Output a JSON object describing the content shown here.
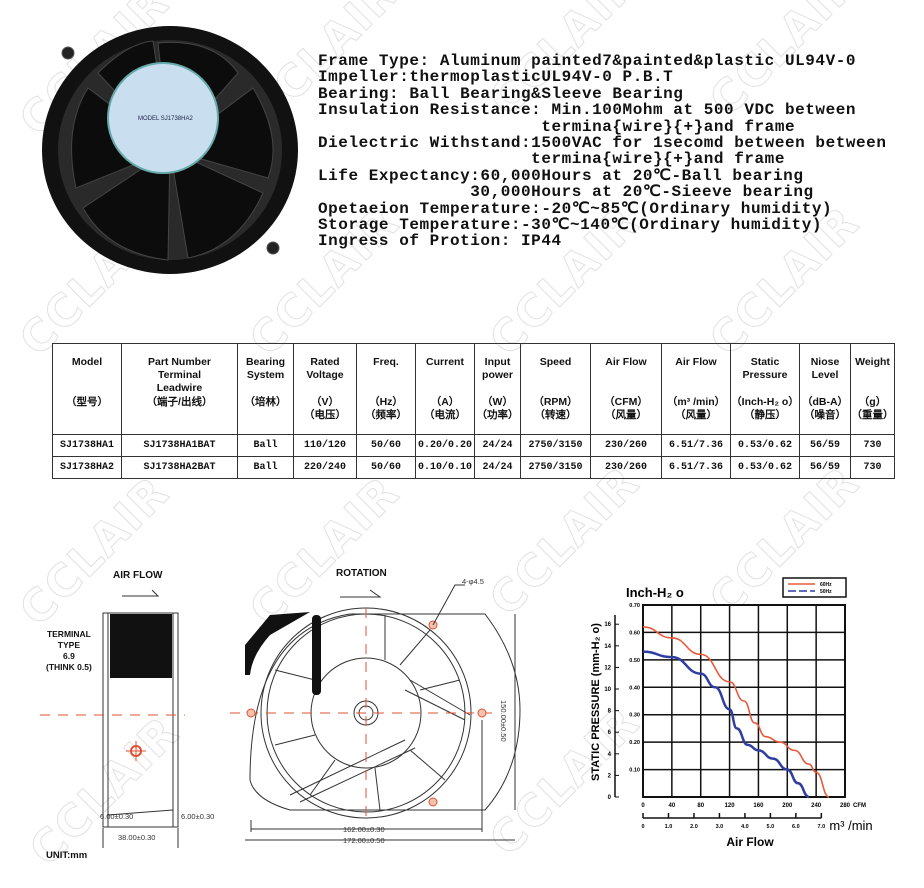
{
  "watermark": "CCLAIR",
  "specs": [
    "Frame Type: Aluminum painted7&painted&plastic UL94V-0",
    "Impeller:thermoplasticUL94V-0 P.B.T",
    "Bearing: Ball Bearing&Sleeve Bearing",
    "Insulation Resistance: Min.100Mohm at 500 VDC between",
    "                      termina{wire}{+}and frame",
    "Dielectric Withstand:1500VAC for 1secomd between between",
    "                     termina{wire}{+}and frame",
    "Life Expectancy:60,000Hours at 20℃-Ball bearing",
    "               30,000Hours at 20℃-Sieeve bearing",
    "Opetaeion Temperature:-20℃~85℃(Ordinary humidity)",
    "Storage Temperature:-30℃~140℃(Ordinary humidity)",
    "Ingress of Protion: IP44"
  ],
  "fan_label": "MODEL SJ1738HA2",
  "table": {
    "columns": [
      {
        "en": "Model",
        "unit": "",
        "cn": "（型号）"
      },
      {
        "en": "Part Number\nTerminal\nLeadwire",
        "unit": "",
        "cn": "（端子/出线）"
      },
      {
        "en": "Bearing\nSystem",
        "unit": "",
        "cn": "（培林）"
      },
      {
        "en": "Rated\nVoltage",
        "unit": "（V）",
        "cn": "（电压）"
      },
      {
        "en": "Freq.",
        "unit": "（Hz）",
        "cn": "（频率）"
      },
      {
        "en": "Current",
        "unit": "（A）",
        "cn": "（电流）"
      },
      {
        "en": "Input\npower",
        "unit": "（W）",
        "cn": "（功率）"
      },
      {
        "en": "Speed",
        "unit": "（RPM）",
        "cn": "（转速）"
      },
      {
        "en": "Air Flow",
        "unit": "（CFM）",
        "cn": "（风量）"
      },
      {
        "en": "Air Flow",
        "unit": "（m³ /min）",
        "cn": "（风量）"
      },
      {
        "en": "Static\nPressure",
        "unit": "（Inch-H₂ o）",
        "cn": "（静压）"
      },
      {
        "en": "Niose\nLevel",
        "unit": "（dB-A）",
        "cn": "（噪音）"
      },
      {
        "en": "Weight",
        "unit": "（g）",
        "cn": "（重量）"
      }
    ],
    "rows": [
      [
        "SJ1738HA1",
        "SJ1738HA1BAT",
        "Ball",
        "110/120",
        "50/60",
        "0.20/0.20",
        "24/24",
        "2750/3150",
        "230/260",
        "6.51/7.36",
        "0.53/0.62",
        "56/59",
        "730"
      ],
      [
        "SJ1738HA2",
        "SJ1738HA2BAT",
        "Ball",
        "220/240",
        "50/60",
        "0.10/0.10",
        "24/24",
        "2750/3150",
        "230/260",
        "6.51/7.36",
        "0.53/0.62",
        "56/59",
        "730"
      ]
    ]
  },
  "drawing": {
    "air_flow": "AIR FLOW",
    "terminal": "TERMINAL\nTYPE\n6.9\n(THINK 0.5)",
    "side_dim_left": "6.00±0.30",
    "side_dim_right": "6.00±0.30",
    "side_dim_width": "38.00±0.30",
    "unit": "UNIT:mm",
    "rotation": "ROTATION",
    "hole": "4-φ4.5",
    "dim_height": "150.00±0.50",
    "dim_162": "162.00±0.30",
    "dim_172": "172.00±0.50"
  },
  "chart_data": {
    "type": "line",
    "title": "Inch-H₂ o",
    "xlabel": "Air Flow",
    "ylabel": "STATIC PRESSURE (mm-H₂ o)",
    "x_unit": "CFM",
    "x2_unit": "m³ /min",
    "xlim": [
      0,
      280
    ],
    "ylim": [
      0,
      0.7
    ],
    "x_ticks": [
      "0",
      "40",
      "80",
      "120",
      "160",
      "200",
      "240",
      "280"
    ],
    "y_ticks": [
      "0.10",
      "0.20",
      "0.30",
      "0.40",
      "0.50",
      "0.60",
      "0.70"
    ],
    "y2_ticks": [
      "0",
      "2",
      "4",
      "6",
      "8",
      "10",
      "12",
      "14",
      "16"
    ],
    "x2_ticks": [
      "0",
      "1.0",
      "2.0",
      "3.0",
      "4.0",
      "5.0",
      "6.0",
      "7.0"
    ],
    "grid": true,
    "legend": "top-right",
    "series": [
      {
        "name": "60Hz",
        "color": "#e8593a",
        "style": "solid",
        "x": [
          0,
          40,
          80,
          120,
          140,
          155,
          170,
          190,
          210,
          230,
          240,
          258
        ],
        "y": [
          0.62,
          0.58,
          0.52,
          0.42,
          0.35,
          0.27,
          0.22,
          0.2,
          0.17,
          0.12,
          0.09,
          0
        ]
      },
      {
        "name": "50Hz",
        "color": "#2f3ea0",
        "style": "dashed",
        "x": [
          0,
          40,
          80,
          100,
          120,
          130,
          145,
          160,
          180,
          200,
          215,
          230
        ],
        "y": [
          0.53,
          0.51,
          0.45,
          0.4,
          0.32,
          0.25,
          0.19,
          0.17,
          0.14,
          0.1,
          0.05,
          0
        ]
      }
    ]
  }
}
